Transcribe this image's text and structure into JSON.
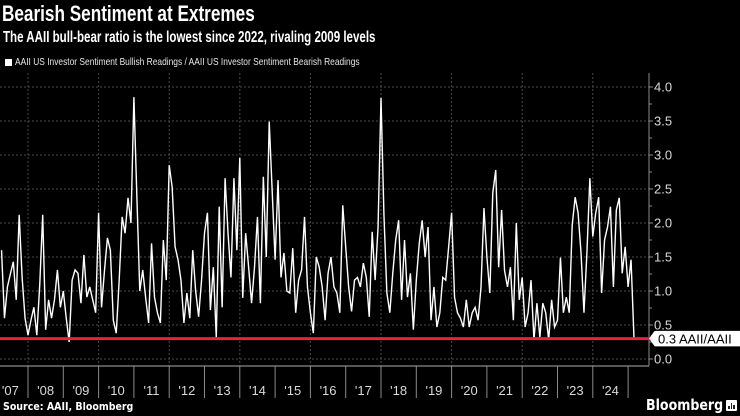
{
  "header": {
    "title": "Bearish Sentiment at Extremes",
    "subtitle": "The AAII bull-bear ratio is the lowest since 2022, rivaling 2009 levels"
  },
  "footer": {
    "source": "Source: AAII, Bloomberg",
    "brand": "Bloomberg",
    "brand_icon": "bloomberg-terminal-icon"
  },
  "colors": {
    "background": "#000000",
    "series": "#ffffff",
    "reference_line": "#e8213c",
    "grid": "#4a4a4a",
    "axis": "#8a8a8a",
    "tick_label": "#d9d9d9"
  },
  "chart_data": {
    "type": "line",
    "title": "Bearish Sentiment at Extremes",
    "subtitle": "The AAII bull-bear ratio is the lowest since 2022, rivaling 2009 levels",
    "xlabel": "",
    "ylabel": "",
    "legend": [
      "AAII US Investor Sentiment Bullish Readings / AAII US Investor Sentiment Bearish Readings"
    ],
    "legend_position": "top-left",
    "y_axis_side": "right",
    "grid": true,
    "xlim": [
      2007.2,
      2025.6
    ],
    "ylim": [
      -0.1,
      4.2
    ],
    "x_start_year": 2007.25,
    "x_step_years": 0.083333,
    "series": [
      {
        "name": "AAII US Investor Sentiment Bullish Readings / AAII US Investor Sentiment Bearish Readings",
        "values": [
          1.6,
          0.6,
          1.06,
          1.25,
          1.43,
          0.87,
          2.12,
          1.2,
          0.6,
          0.35,
          0.57,
          0.76,
          0.35,
          1.1,
          2.12,
          0.43,
          0.87,
          0.6,
          0.87,
          1.31,
          0.76,
          1.0,
          0.6,
          0.25,
          1.16,
          1.31,
          1.26,
          0.82,
          1.53,
          0.91,
          1.06,
          0.87,
          0.68,
          2.15,
          0.76,
          1.3,
          1.78,
          1.6,
          0.57,
          0.38,
          1.16,
          2.09,
          1.85,
          2.37,
          2.0,
          3.85,
          2.4,
          1.0,
          1.31,
          0.9,
          0.53,
          1.7,
          0.91,
          0.68,
          0.53,
          1.75,
          1.16,
          2.85,
          2.53,
          1.65,
          1.46,
          1.16,
          0.53,
          0.97,
          0.6,
          1.6,
          1.0,
          0.62,
          1.16,
          1.85,
          2.15,
          0.72,
          1.35,
          0.32,
          2.24,
          0.76,
          2.66,
          1.85,
          1.2,
          2.66,
          1.6,
          2.96,
          0.9,
          1.85,
          1.35,
          0.82,
          1.35,
          2.09,
          0.82,
          2.68,
          1.5,
          3.49,
          2.48,
          1.46,
          2.63,
          1.2,
          1.56,
          1.0,
          0.97,
          1.63,
          0.68,
          1.16,
          1.31,
          2.09,
          1.06,
          0.68,
          0.38,
          1.5,
          1.35,
          1.06,
          0.57,
          1.26,
          1.5,
          1.06,
          0.97,
          0.68,
          2.26,
          1.65,
          1.06,
          0.7,
          1.16,
          1.2,
          1.06,
          1.41,
          1.2,
          0.62,
          1.87,
          1.16,
          1.94,
          3.84,
          2.12,
          0.97,
          0.68,
          1.26,
          1.75,
          2.04,
          0.87,
          1.75,
          0.91,
          1.26,
          0.43,
          1.16,
          1.7,
          2.04,
          1.5,
          1.94,
          0.57,
          1.06,
          0.47,
          0.68,
          1.2,
          1.16,
          1.65,
          2.15,
          0.91,
          0.68,
          0.6,
          0.47,
          0.87,
          0.47,
          0.68,
          0.76,
          0.57,
          1.06,
          2.22,
          1.5,
          0.97,
          2.44,
          2.78,
          1.35,
          2.19,
          1.3,
          1.06,
          1.35,
          0.57,
          2.0,
          0.87,
          1.2,
          0.47,
          0.68,
          1.16,
          0.28,
          0.82,
          0.32,
          0.82,
          0.68,
          0.28,
          0.87,
          0.47,
          0.57,
          1.49,
          0.68,
          0.91,
          0.68,
          1.97,
          2.38,
          2.15,
          1.56,
          0.68,
          1.56,
          2.66,
          1.8,
          2.15,
          2.38,
          0.97,
          1.75,
          1.94,
          2.24,
          1.06,
          2.19,
          2.37,
          1.26,
          1.65,
          1.06,
          1.46,
          0.31
        ]
      }
    ],
    "y_ticks": [
      {
        "value": 0.0,
        "label": "0.0"
      },
      {
        "value": 0.5,
        "label": "0.5"
      },
      {
        "value": 1.0,
        "label": "1.0"
      },
      {
        "value": 1.5,
        "label": "1.5"
      },
      {
        "value": 2.0,
        "label": "2.0"
      },
      {
        "value": 2.5,
        "label": "2.5"
      },
      {
        "value": 3.0,
        "label": "3.0"
      },
      {
        "value": 3.5,
        "label": "3.5"
      },
      {
        "value": 4.0,
        "label": "4.0"
      }
    ],
    "x_ticks": [
      {
        "year": 2007,
        "label": "'07"
      },
      {
        "year": 2008,
        "label": "'08"
      },
      {
        "year": 2009,
        "label": "'09"
      },
      {
        "year": 2010,
        "label": "'10"
      },
      {
        "year": 2011,
        "label": "'11"
      },
      {
        "year": 2012,
        "label": "'12"
      },
      {
        "year": 2013,
        "label": "'13"
      },
      {
        "year": 2014,
        "label": "'14"
      },
      {
        "year": 2015,
        "label": "'15"
      },
      {
        "year": 2016,
        "label": "'16"
      },
      {
        "year": 2017,
        "label": "'17"
      },
      {
        "year": 2018,
        "label": "'18"
      },
      {
        "year": 2019,
        "label": "'19"
      },
      {
        "year": 2020,
        "label": "'20"
      },
      {
        "year": 2021,
        "label": "'21"
      },
      {
        "year": 2022,
        "label": "'22"
      },
      {
        "year": 2023,
        "label": "'23"
      },
      {
        "year": 2024,
        "label": "'24"
      }
    ],
    "reference_line": {
      "value": 0.3,
      "label": "0.3 AAII/AAII"
    }
  }
}
